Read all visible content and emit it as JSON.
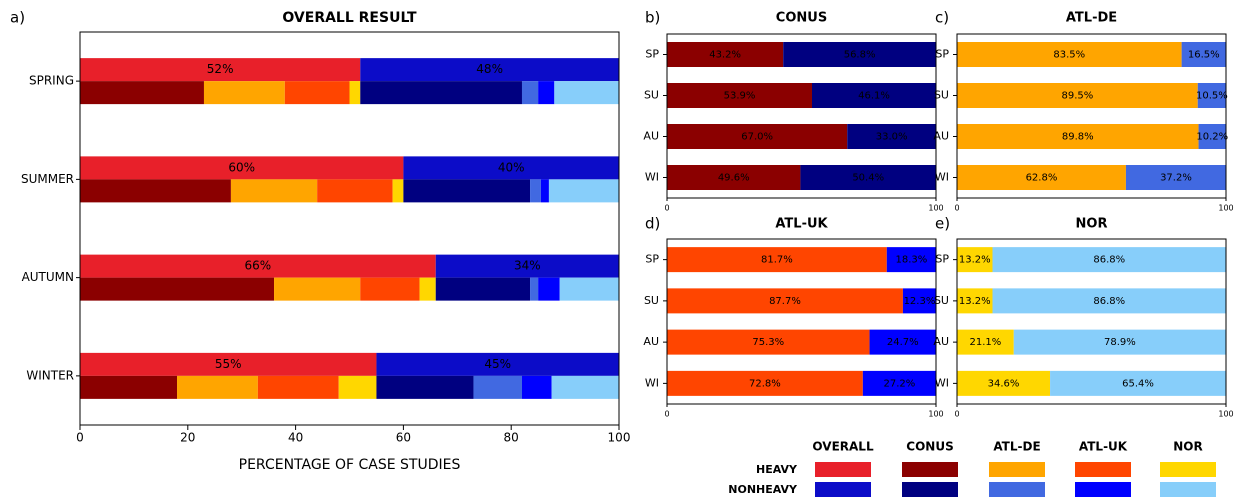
{
  "chart_data": [
    {
      "type": "bar",
      "panel_label": "a)",
      "title": "OVERALL RESULT",
      "xlabel": "PERCENTAGE OF CASE STUDIES",
      "categories": [
        "SPRING",
        "SUMMER",
        "AUTUMN",
        "WINTER"
      ],
      "series": [
        {
          "color": "#e8202a",
          "label_color": "#ffffff",
          "values": [
            52,
            60,
            66,
            55
          ],
          "value_labels": [
            "52%",
            "60%",
            "66%",
            "55%"
          ]
        },
        {
          "color": "#0c0cc8",
          "label_color": "#ffffff",
          "values": [
            48,
            40,
            34,
            45
          ],
          "value_labels": [
            "48%",
            "40%",
            "34%",
            "45%"
          ]
        }
      ],
      "breakdown": [
        {
          "color": "#8b0000",
          "values": [
            23,
            28,
            36,
            18
          ]
        },
        {
          "color": "#ffa500",
          "values": [
            15,
            16,
            16,
            15
          ]
        },
        {
          "color": "#ff4500",
          "values": [
            12,
            14,
            11,
            15
          ]
        },
        {
          "color": "#ffd700",
          "values": [
            2,
            2,
            3,
            7
          ]
        },
        {
          "color": "#000080",
          "values": [
            30,
            23.5,
            17.5,
            18
          ]
        },
        {
          "color": "#4169e1",
          "values": [
            3,
            2,
            1.5,
            9
          ]
        },
        {
          "color": "#0000ff",
          "values": [
            3,
            1.5,
            4,
            5.5
          ]
        },
        {
          "color": "#87cefa",
          "values": [
            12,
            13,
            11,
            12.5
          ]
        }
      ],
      "xlim": [
        0,
        100
      ],
      "xticks": [
        0,
        20,
        40,
        60,
        80,
        100
      ]
    },
    {
      "type": "bar",
      "panel_label": "b)",
      "title": "CONUS",
      "categories": [
        "SP",
        "SU",
        "AU",
        "WI"
      ],
      "series": [
        {
          "color": "#8b0000",
          "label_color": "#ffffff",
          "values": [
            43.2,
            53.9,
            67.0,
            49.6
          ],
          "value_labels": [
            "43.2%",
            "53.9%",
            "67.0%",
            "49.6%"
          ]
        },
        {
          "color": "#000080",
          "label_color": "#ffffff",
          "values": [
            56.8,
            46.1,
            33.0,
            50.4
          ],
          "value_labels": [
            "56.8%",
            "46.1%",
            "33.0%",
            "50.4%"
          ]
        }
      ],
      "xlim": [
        0,
        100
      ],
      "xticks": [
        0,
        100
      ]
    },
    {
      "type": "bar",
      "panel_label": "c)",
      "title": "ATL-DE",
      "categories": [
        "SP",
        "SU",
        "AU",
        "WI"
      ],
      "series": [
        {
          "color": "#ffa500",
          "label_color": "#ffffff",
          "values": [
            83.5,
            89.5,
            89.8,
            62.8
          ],
          "value_labels": [
            "83.5%",
            "89.5%",
            "89.8%",
            "62.8%"
          ]
        },
        {
          "color": "#4169e1",
          "label_color": "#ffffff",
          "values": [
            16.5,
            10.5,
            10.2,
            37.2
          ],
          "value_labels": [
            "16.5%",
            "10.5%",
            "10.2%",
            "37.2%"
          ]
        }
      ],
      "xlim": [
        0,
        100
      ],
      "xticks": [
        0,
        100
      ]
    },
    {
      "type": "bar",
      "panel_label": "d)",
      "title": "ATL-UK",
      "categories": [
        "SP",
        "SU",
        "AU",
        "WI"
      ],
      "series": [
        {
          "color": "#ff4500",
          "label_color": "#ffffff",
          "values": [
            81.7,
            87.7,
            75.3,
            72.8
          ],
          "value_labels": [
            "81.7%",
            "87.7%",
            "75.3%",
            "72.8%"
          ]
        },
        {
          "color": "#0000ff",
          "label_color": "#ffffff",
          "values": [
            18.3,
            12.3,
            24.7,
            27.2
          ],
          "value_labels": [
            "18.3%",
            "12.3%",
            "24.7%",
            "27.2%"
          ]
        }
      ],
      "xlim": [
        0,
        100
      ],
      "xticks": [
        0,
        100
      ]
    },
    {
      "type": "bar",
      "panel_label": "e)",
      "title": "NOR",
      "categories": [
        "SP",
        "SU",
        "AU",
        "WI"
      ],
      "series": [
        {
          "color": "#ffd700",
          "label_color": "#000000",
          "values": [
            13.2,
            13.2,
            21.1,
            34.6
          ],
          "value_labels": [
            "13.2%",
            "13.2%",
            "21.1%",
            "34.6%"
          ]
        },
        {
          "color": "#87cefa",
          "label_color": "#000000",
          "values": [
            86.8,
            86.8,
            78.9,
            65.4
          ],
          "value_labels": [
            "86.8%",
            "86.8%",
            "78.9%",
            "65.4%"
          ]
        }
      ],
      "xlim": [
        0,
        100
      ],
      "xticks": [
        0,
        100
      ]
    }
  ],
  "legend": {
    "columns": [
      "OVERALL",
      "CONUS",
      "ATL-DE",
      "ATL-UK",
      "NOR"
    ],
    "rows": [
      "HEAVY",
      "NONHEAVY"
    ],
    "colors": [
      [
        "#e8202a",
        "#8b0000",
        "#ffa500",
        "#ff4500",
        "#ffd700"
      ],
      [
        "#0c0cc8",
        "#000080",
        "#4169e1",
        "#0000ff",
        "#87cefa"
      ]
    ]
  }
}
